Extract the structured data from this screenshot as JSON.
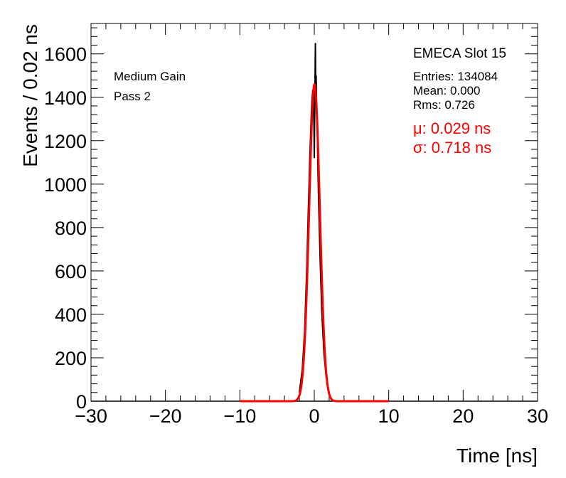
{
  "chart_data": {
    "type": "histogram",
    "xlabel": "Time [ns]",
    "ylabel": "Events / 0.02 ns",
    "xlim": [
      -30,
      30
    ],
    "ylim": [
      0,
      1740
    ],
    "x_ticks": [
      -30,
      -20,
      -10,
      0,
      10,
      20,
      30
    ],
    "x_tick_labels": [
      "−30",
      "−20",
      "−10",
      "0",
      "10",
      "20",
      "30"
    ],
    "y_ticks": [
      0,
      200,
      400,
      600,
      800,
      1000,
      1200,
      1400,
      1600
    ],
    "y_tick_labels": [
      "0",
      "200",
      "400",
      "600",
      "800",
      "1000",
      "1200",
      "1400",
      "1600"
    ],
    "grid": false,
    "series": [
      {
        "name": "data",
        "kind": "histogram",
        "color": "#000000",
        "x": [
          -2.0,
          -1.6,
          -1.3,
          -1.0,
          -0.8,
          -0.6,
          -0.4,
          -0.3,
          -0.2,
          -0.1,
          0.0,
          0.05,
          0.1,
          0.15,
          0.2,
          0.25,
          0.3,
          0.4,
          0.5,
          0.6,
          0.8,
          1.0,
          1.3,
          1.6,
          2.0
        ],
        "values": [
          40,
          150,
          320,
          620,
          880,
          1120,
          1320,
          1390,
          1430,
          1440,
          1120,
          1300,
          1480,
          1650,
          1400,
          1500,
          1380,
          1250,
          1050,
          900,
          640,
          420,
          220,
          110,
          40
        ]
      },
      {
        "name": "Gaussian fit",
        "kind": "fit",
        "color": "#ff0000",
        "mean": 0.029,
        "sigma": 0.718,
        "amplitude": 1460,
        "range": [
          -10,
          10
        ]
      }
    ],
    "annotations": {
      "gain": "Medium Gain",
      "pass": "Pass 2",
      "slot": "EMECA Slot 15",
      "entries": "Entries: 134084",
      "mean": "Mean: 0.000",
      "rms": "Rms: 0.726",
      "fit_mu": "μ: 0.029 ns",
      "fit_sigma": "σ: 0.718 ns"
    }
  }
}
